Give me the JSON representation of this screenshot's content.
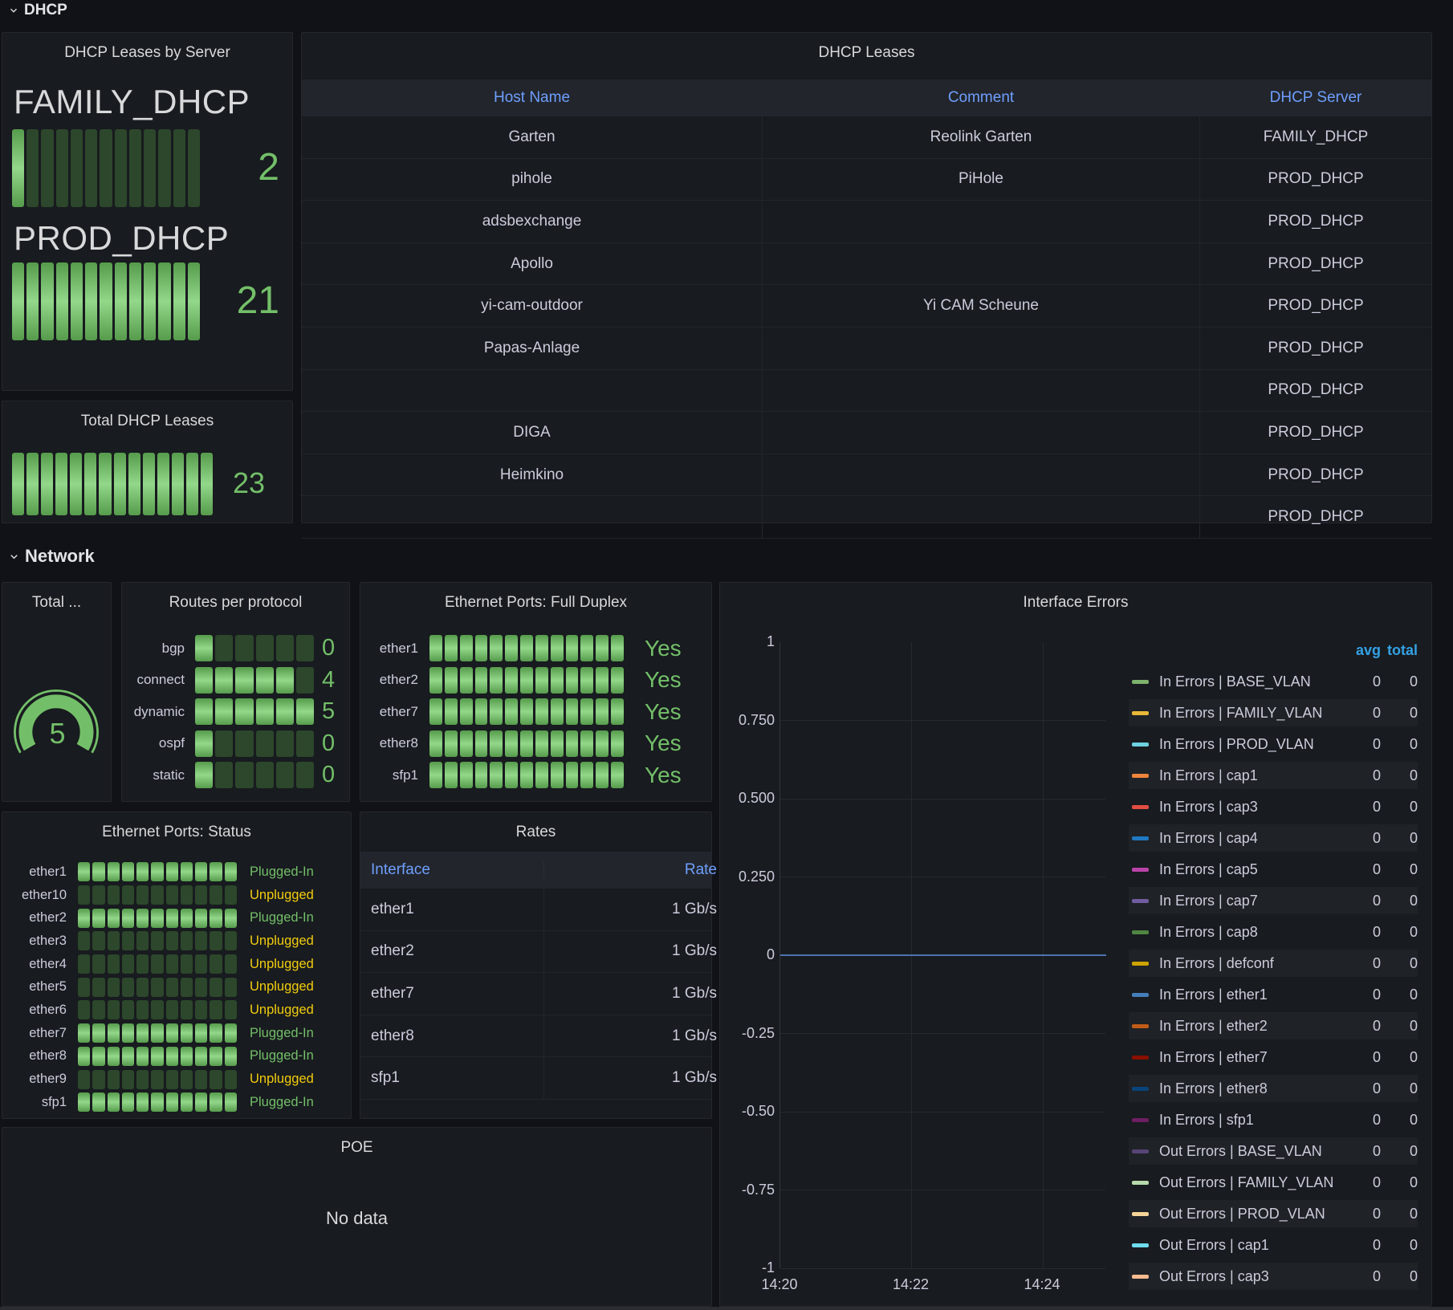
{
  "sections": {
    "dhcp": "DHCP",
    "network": "Network"
  },
  "leases_by_server": {
    "title": "DHCP Leases by Server",
    "servers": [
      {
        "name": "FAMILY_DHCP",
        "value": "2",
        "cells": 13,
        "lit": 1
      },
      {
        "name": "PROD_DHCP",
        "value": "21",
        "cells": 13,
        "lit": 13
      }
    ]
  },
  "total_leases": {
    "title": "Total DHCP Leases",
    "value": "23",
    "cells": 14,
    "lit": 14
  },
  "dhcp_table": {
    "title": "DHCP Leases",
    "columns": [
      "Host Name",
      "Comment",
      "DHCP Server"
    ],
    "rows": [
      [
        "Garten",
        "Reolink Garten",
        "FAMILY_DHCP"
      ],
      [
        "pihole",
        "PiHole",
        "PROD_DHCP"
      ],
      [
        "adsbexchange",
        "",
        "PROD_DHCP"
      ],
      [
        "Apollo",
        "",
        "PROD_DHCP"
      ],
      [
        "yi-cam-outdoor",
        "Yi CAM Scheune",
        "PROD_DHCP"
      ],
      [
        "Papas-Anlage",
        "",
        "PROD_DHCP"
      ],
      [
        "",
        "",
        "PROD_DHCP"
      ],
      [
        "DIGA",
        "",
        "PROD_DHCP"
      ],
      [
        "Heimkino",
        "",
        "PROD_DHCP"
      ],
      [
        "",
        "",
        "PROD_DHCP"
      ]
    ]
  },
  "total_gauge": {
    "title": "Total ...",
    "value": "5"
  },
  "routes": {
    "title": "Routes per protocol",
    "cells": 6,
    "rows": [
      {
        "label": "bgp",
        "value": "0",
        "lit": 1
      },
      {
        "label": "connect",
        "value": "4",
        "lit": 5
      },
      {
        "label": "dynamic",
        "value": "5",
        "lit": 6
      },
      {
        "label": "ospf",
        "value": "0",
        "lit": 1
      },
      {
        "label": "static",
        "value": "0",
        "lit": 1
      }
    ]
  },
  "duplex": {
    "title": "Ethernet Ports: Full Duplex",
    "cells": 13,
    "rows": [
      {
        "label": "ether1",
        "value": "Yes"
      },
      {
        "label": "ether2",
        "value": "Yes"
      },
      {
        "label": "ether7",
        "value": "Yes"
      },
      {
        "label": "ether8",
        "value": "Yes"
      },
      {
        "label": "sfp1",
        "value": "Yes"
      }
    ]
  },
  "status": {
    "title": "Ethernet Ports: Status",
    "cells": 11,
    "rows": [
      {
        "label": "ether1",
        "state": "Plugged-In"
      },
      {
        "label": "ether10",
        "state": "Unplugged"
      },
      {
        "label": "ether2",
        "state": "Plugged-In"
      },
      {
        "label": "ether3",
        "state": "Unplugged"
      },
      {
        "label": "ether4",
        "state": "Unplugged"
      },
      {
        "label": "ether5",
        "state": "Unplugged"
      },
      {
        "label": "ether6",
        "state": "Unplugged"
      },
      {
        "label": "ether7",
        "state": "Plugged-In"
      },
      {
        "label": "ether8",
        "state": "Plugged-In"
      },
      {
        "label": "ether9",
        "state": "Unplugged"
      },
      {
        "label": "sfp1",
        "state": "Plugged-In"
      }
    ]
  },
  "rates": {
    "title": "Rates",
    "columns": [
      "Interface",
      "Rate"
    ],
    "rows": [
      [
        "ether1",
        "1 Gb/s"
      ],
      [
        "ether2",
        "1 Gb/s"
      ],
      [
        "ether7",
        "1 Gb/s"
      ],
      [
        "ether8",
        "1 Gb/s"
      ],
      [
        "sfp1",
        "1 Gb/s"
      ]
    ]
  },
  "poe": {
    "title": "POE",
    "message": "No data"
  },
  "interface_errors": {
    "title": "Interface Errors",
    "legend_columns": [
      "avg",
      "total"
    ],
    "yticks": [
      "1",
      "0.750",
      "0.500",
      "0.250",
      "0",
      "-0.25",
      "-0.50",
      "-0.75",
      "-1"
    ],
    "xticks": [
      "14:20",
      "14:22",
      "14:24"
    ]
  },
  "chart_data": {
    "type": "line",
    "title": "Interface Errors",
    "x": [
      "14:20",
      "14:22",
      "14:24"
    ],
    "ylim": [
      -1,
      1
    ],
    "grid": true,
    "legend_position": "right",
    "legend_value_columns": [
      "avg",
      "total"
    ],
    "series": [
      {
        "name": "In Errors | BASE_VLAN",
        "color": "#7EB26D",
        "values": [
          0,
          0,
          0
        ],
        "avg": "0",
        "total": "0"
      },
      {
        "name": "In Errors | FAMILY_VLAN",
        "color": "#EAB839",
        "values": [
          0,
          0,
          0
        ],
        "avg": "0",
        "total": "0"
      },
      {
        "name": "In Errors | PROD_VLAN",
        "color": "#6ED0E0",
        "values": [
          0,
          0,
          0
        ],
        "avg": "0",
        "total": "0"
      },
      {
        "name": "In Errors | cap1",
        "color": "#EF843C",
        "values": [
          0,
          0,
          0
        ],
        "avg": "0",
        "total": "0"
      },
      {
        "name": "In Errors | cap3",
        "color": "#E24D42",
        "values": [
          0,
          0,
          0
        ],
        "avg": "0",
        "total": "0"
      },
      {
        "name": "In Errors | cap4",
        "color": "#1F78C1",
        "values": [
          0,
          0,
          0
        ],
        "avg": "0",
        "total": "0"
      },
      {
        "name": "In Errors | cap5",
        "color": "#BA43A9",
        "values": [
          0,
          0,
          0
        ],
        "avg": "0",
        "total": "0"
      },
      {
        "name": "In Errors | cap7",
        "color": "#705DA0",
        "values": [
          0,
          0,
          0
        ],
        "avg": "0",
        "total": "0"
      },
      {
        "name": "In Errors | cap8",
        "color": "#508642",
        "values": [
          0,
          0,
          0
        ],
        "avg": "0",
        "total": "0"
      },
      {
        "name": "In Errors | defconf",
        "color": "#CCA300",
        "values": [
          0,
          0,
          0
        ],
        "avg": "0",
        "total": "0"
      },
      {
        "name": "In Errors | ether1",
        "color": "#447EBC",
        "values": [
          0,
          0,
          0
        ],
        "avg": "0",
        "total": "0"
      },
      {
        "name": "In Errors | ether2",
        "color": "#C15C17",
        "values": [
          0,
          0,
          0
        ],
        "avg": "0",
        "total": "0"
      },
      {
        "name": "In Errors | ether7",
        "color": "#890F02",
        "values": [
          0,
          0,
          0
        ],
        "avg": "0",
        "total": "0"
      },
      {
        "name": "In Errors | ether8",
        "color": "#0A437C",
        "values": [
          0,
          0,
          0
        ],
        "avg": "0",
        "total": "0"
      },
      {
        "name": "In Errors | sfp1",
        "color": "#6D1F62",
        "values": [
          0,
          0,
          0
        ],
        "avg": "0",
        "total": "0"
      },
      {
        "name": "Out Errors | BASE_VLAN",
        "color": "#584477",
        "values": [
          0,
          0,
          0
        ],
        "avg": "0",
        "total": "0"
      },
      {
        "name": "Out Errors | FAMILY_VLAN",
        "color": "#B7DBAB",
        "values": [
          0,
          0,
          0
        ],
        "avg": "0",
        "total": "0"
      },
      {
        "name": "Out Errors | PROD_VLAN",
        "color": "#F4D598",
        "values": [
          0,
          0,
          0
        ],
        "avg": "0",
        "total": "0"
      },
      {
        "name": "Out Errors | cap1",
        "color": "#70DBED",
        "values": [
          0,
          0,
          0
        ],
        "avg": "0",
        "total": "0"
      },
      {
        "name": "Out Errors | cap3",
        "color": "#F9BA8F",
        "values": [
          0,
          0,
          0
        ],
        "avg": "0",
        "total": "0"
      }
    ]
  }
}
